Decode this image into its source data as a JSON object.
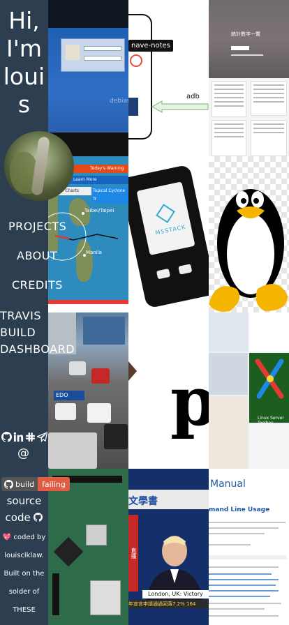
{
  "sidebar": {
    "greeting_lines": [
      "Hi,",
      "I'm",
      "loui",
      "s"
    ],
    "nav": {
      "projects": "PROJECTS",
      "about": "ABOUT",
      "credits": "CREDITS",
      "travis_lines": [
        "TRAVIS",
        "BUILD",
        "DASHBOARD"
      ]
    },
    "social_icons": [
      "github-icon",
      "linkedin-icon",
      "slack-icon",
      "telegram-icon"
    ],
    "email_symbol": "@",
    "badge": {
      "left": "build",
      "right": "failing",
      "left_color": "#555555",
      "right_color": "#e05d44"
    },
    "source_code": {
      "line1": "source",
      "line2": "code"
    },
    "credits_lines": [
      "coded by",
      "louisclklaw.",
      "Built on the",
      "solder of",
      "THESE"
    ]
  },
  "gallery": {
    "tile_diagram": {
      "label": "nave-notes",
      "arrow_label": "adb"
    },
    "tile_debian": {
      "watermark": "debian"
    },
    "tile_screens": {
      "title": "統計數字一覽"
    },
    "tile_map": {
      "warning": "Today's Warning",
      "learn_more": "Learn More",
      "tab_left": "ter Charts",
      "tab_right": "Topical Cyclone Tr",
      "place1": "Taibei/Taipei",
      "place2": "Manila"
    },
    "tile_m5": {
      "brand": "M5STACK"
    },
    "tile_street": {
      "sign": "EDO"
    },
    "tile_p": {
      "letter": "p"
    },
    "tile_tools": {
      "caption": "Linux Server Toolbox"
    },
    "tile_tv": {
      "header": "文學書",
      "side": "直播",
      "caption1": "London, UK: Victory Speech",
      "caption2": "年宣言申請通過回落7.2% 164"
    },
    "tile_doc": {
      "title": "Manual",
      "subtitle": "mand Line Usage"
    }
  }
}
